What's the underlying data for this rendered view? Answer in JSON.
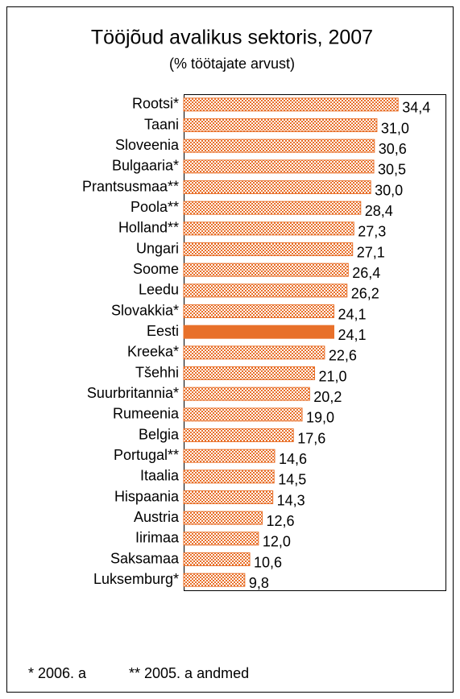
{
  "chart_data": {
    "type": "bar",
    "orientation": "horizontal",
    "title": "Tööjõud avalikus sektoris, 2007",
    "subtitle": "(% töötajate arvust)",
    "categories": [
      "Rootsi*",
      "Taani",
      "Sloveenia",
      "Bulgaaria*",
      "Prantsusmaa**",
      "Poola**",
      "Holland**",
      "Ungari",
      "Soome",
      "Leedu",
      "Slovakkia*",
      "Eesti",
      "Kreeka*",
      "Tšehhi",
      "Suurbritannia*",
      "Rumeenia",
      "Belgia",
      "Portugal**",
      "Itaalia",
      "Hispaania",
      "Austria",
      "Iirimaa",
      "Saksamaa",
      "Luksemburg*"
    ],
    "values": [
      34.4,
      31.0,
      30.6,
      30.5,
      30.0,
      28.4,
      27.3,
      27.1,
      26.4,
      26.2,
      24.1,
      24.1,
      22.6,
      21.0,
      20.2,
      19.0,
      17.6,
      14.6,
      14.5,
      14.3,
      12.6,
      12.0,
      10.6,
      9.8
    ],
    "value_labels": [
      "34,4",
      "31,0",
      "30,6",
      "30,5",
      "30,0",
      "28,4",
      "27,3",
      "27,1",
      "26,4",
      "26,2",
      "24,1",
      "24,1",
      "22,6",
      "21,0",
      "20,2",
      "19,0",
      "17,6",
      "14,6",
      "14,5",
      "14,3",
      "12,6",
      "12,0",
      "10,6",
      "9,8"
    ],
    "color": "#e8702a",
    "highlight": "Eesti",
    "xlim": [
      0,
      42
    ],
    "footnotes": [
      "* 2006. a",
      "** 2005. a andmed"
    ]
  }
}
